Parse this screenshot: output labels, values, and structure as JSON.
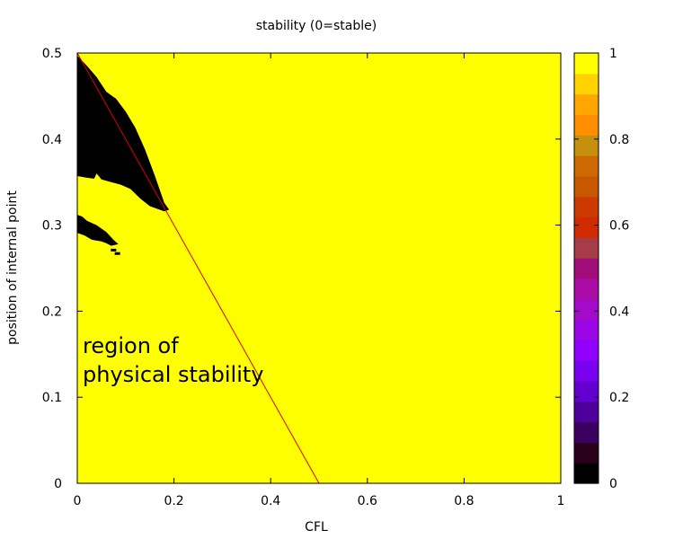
{
  "chart_data": {
    "type": "heatmap",
    "title": "stability (0=stable)",
    "xlabel": "CFL",
    "ylabel": "position of internal point",
    "xlim": [
      0,
      1
    ],
    "ylim": [
      0,
      0.5
    ],
    "xticks": [
      "0",
      "0.2",
      "0.4",
      "0.6",
      "0.8",
      "1"
    ],
    "yticks": [
      "0",
      "0.1",
      "0.2",
      "0.3",
      "0.4",
      "0.5"
    ],
    "colorbar": {
      "range": [
        0,
        1
      ],
      "ticks": [
        "0",
        "0.2",
        "0.4",
        "0.6",
        "0.8",
        "1"
      ],
      "colors": [
        "#000000",
        "#2a001a",
        "#3b0060",
        "#4f009a",
        "#6400cf",
        "#7a00f0",
        "#8f00ff",
        "#9b06e6",
        "#a30ac9",
        "#ab0ca6",
        "#a10c79",
        "#a63c46",
        "#d02a00",
        "#cc3a00",
        "#c85800",
        "#cd6900",
        "#c68f0c",
        "#ff8f00",
        "#ffa700",
        "#ffd200",
        "#ffff00"
      ]
    },
    "background_value": 1,
    "background_color": "#ffff00",
    "unstable_value": 0,
    "unstable_color": "#000000",
    "unstable_regions": [
      {
        "upper_edge": [
          [
            0.0,
            0.497
          ],
          [
            0.02,
            0.485
          ],
          [
            0.04,
            0.472
          ],
          [
            0.06,
            0.455
          ],
          [
            0.08,
            0.447
          ],
          [
            0.1,
            0.432
          ],
          [
            0.12,
            0.413
          ],
          [
            0.14,
            0.388
          ],
          [
            0.16,
            0.358
          ],
          [
            0.18,
            0.326
          ],
          [
            0.19,
            0.318
          ]
        ],
        "lower_edge": [
          [
            0.19,
            0.318
          ],
          [
            0.18,
            0.316
          ],
          [
            0.17,
            0.318
          ],
          [
            0.15,
            0.322
          ],
          [
            0.13,
            0.331
          ],
          [
            0.11,
            0.342
          ],
          [
            0.09,
            0.347
          ],
          [
            0.07,
            0.35
          ],
          [
            0.05,
            0.353
          ],
          [
            0.04,
            0.36
          ],
          [
            0.035,
            0.354
          ],
          [
            0.02,
            0.355
          ],
          [
            0.0,
            0.357
          ]
        ]
      },
      {
        "upper_edge": [
          [
            0.0,
            0.312
          ],
          [
            0.01,
            0.31
          ],
          [
            0.02,
            0.305
          ],
          [
            0.04,
            0.3
          ],
          [
            0.06,
            0.292
          ],
          [
            0.075,
            0.283
          ],
          [
            0.085,
            0.278
          ]
        ],
        "lower_edge": [
          [
            0.085,
            0.278
          ],
          [
            0.07,
            0.276
          ],
          [
            0.06,
            0.279
          ],
          [
            0.05,
            0.281
          ],
          [
            0.03,
            0.283
          ],
          [
            0.015,
            0.288
          ],
          [
            0.0,
            0.291
          ]
        ]
      }
    ],
    "stray_cells": [
      [
        0.075,
        0.271
      ],
      [
        0.083,
        0.267
      ]
    ],
    "series": [
      {
        "name": "",
        "color": "#e00000",
        "x": [
          0.0,
          0.5
        ],
        "y": [
          0.5,
          0.0
        ]
      }
    ],
    "annotation": [
      "region of",
      "physical stability"
    ]
  }
}
